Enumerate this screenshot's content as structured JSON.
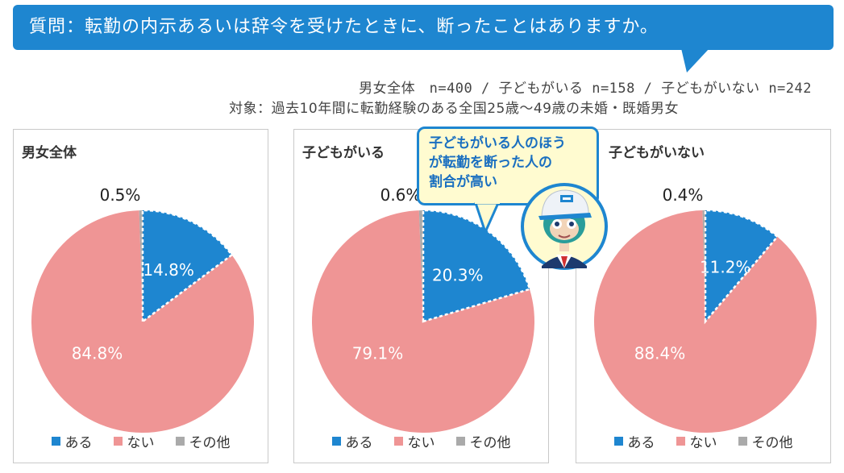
{
  "header": {
    "question": "質問：転勤の内示あるいは辞令を受けたときに、断ったことはありますか。",
    "sample_sizes": "男女全体　n=400 / 子どもがいる n=158 / 子どもがいない n=242",
    "target": "対象：過去10年間に転勤経験のある全国25歳～49歳の未婚・既婚男女"
  },
  "callout": {
    "line1": "子どもがいる人のほう",
    "line2": "が転勤を断った人の",
    "line3": "割合が高い"
  },
  "colors": {
    "aru": "#1e86d0",
    "nai": "#ef9595",
    "sonota": "#aaaaaa",
    "banner": "#1e86d0"
  },
  "chart_data": [
    {
      "type": "pie",
      "title": "男女全体",
      "categories": [
        "ある",
        "ない",
        "その他"
      ],
      "values": [
        14.8,
        84.8,
        0.5
      ],
      "labels": [
        "14.8%",
        "84.8%",
        "0.5%"
      ]
    },
    {
      "type": "pie",
      "title": "子どもがいる",
      "categories": [
        "ある",
        "ない",
        "その他"
      ],
      "values": [
        20.3,
        79.1,
        0.6
      ],
      "labels": [
        "20.3%",
        "79.1%",
        "0.6%"
      ]
    },
    {
      "type": "pie",
      "title": "子どもがいない",
      "categories": [
        "ある",
        "ない",
        "その他"
      ],
      "values": [
        11.2,
        88.4,
        0.4
      ],
      "labels": [
        "11.2%",
        "88.4%",
        "0.4%"
      ]
    }
  ]
}
